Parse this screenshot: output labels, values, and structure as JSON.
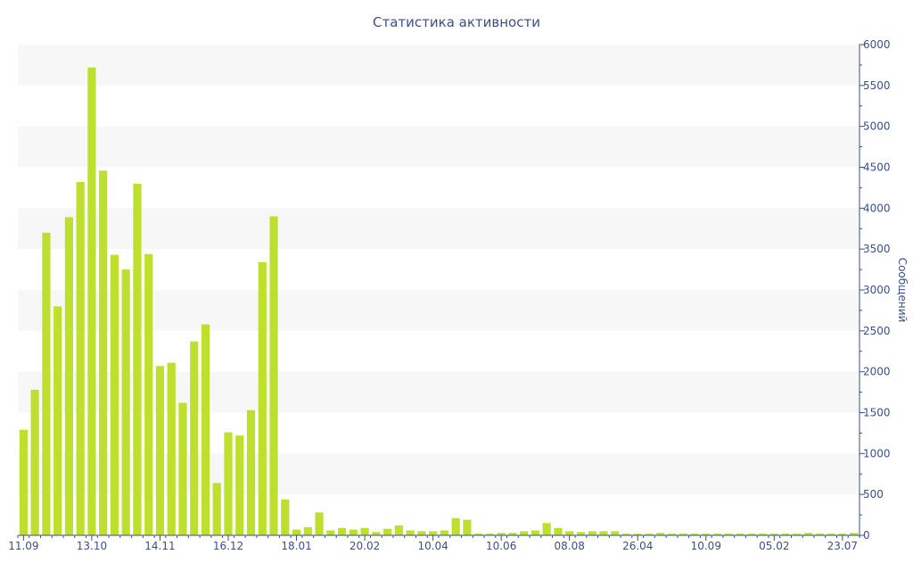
{
  "chart_data": {
    "type": "bar",
    "title": "Статистика активности",
    "xlabel": "",
    "ylabel": "Сообщений",
    "yaxis_position": "right",
    "ylim": [
      0,
      6000
    ],
    "y_ticks": [
      0,
      500,
      1000,
      1500,
      2000,
      2500,
      3000,
      3500,
      4000,
      4500,
      5000,
      5500,
      6000
    ],
    "x_tick_labels": [
      {
        "label": "11.09",
        "index": 0
      },
      {
        "label": "13.10",
        "index": 6
      },
      {
        "label": "14.11",
        "index": 12
      },
      {
        "label": "16.12",
        "index": 18
      },
      {
        "label": "18.01",
        "index": 24
      },
      {
        "label": "20.02",
        "index": 30
      },
      {
        "label": "10.04",
        "index": 36
      },
      {
        "label": "10.06",
        "index": 42
      },
      {
        "label": "08.08",
        "index": 48
      },
      {
        "label": "26.04",
        "index": 54
      },
      {
        "label": "10.09",
        "index": 60
      },
      {
        "label": "05.02",
        "index": 66
      },
      {
        "label": "23.07",
        "index": 72
      }
    ],
    "values": [
      1290,
      1780,
      3700,
      2800,
      3890,
      4320,
      5720,
      4460,
      3430,
      3250,
      4300,
      3440,
      2070,
      2110,
      1620,
      2370,
      2580,
      640,
      1260,
      1220,
      1530,
      3340,
      3900,
      440,
      70,
      100,
      280,
      60,
      90,
      70,
      90,
      40,
      80,
      120,
      60,
      50,
      50,
      60,
      210,
      190,
      20,
      20,
      30,
      30,
      50,
      60,
      150,
      90,
      50,
      40,
      50,
      50,
      50,
      20,
      20,
      20,
      30,
      20,
      20,
      20,
      20,
      20,
      20,
      20,
      20,
      20,
      20,
      20,
      20,
      30,
      20,
      20,
      20,
      30
    ],
    "colors": {
      "bar": "#bde02f",
      "band": "#f7f7f7",
      "axis": "#3a4f8c",
      "text": "#3a4f8c"
    },
    "grid": "alternating horizontal bands",
    "legend": "none"
  }
}
